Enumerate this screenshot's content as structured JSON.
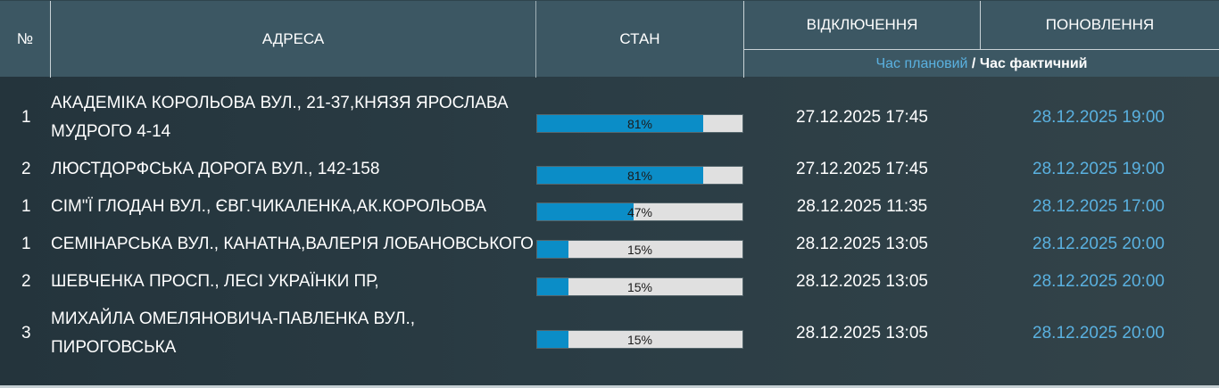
{
  "table": {
    "headers": {
      "num": "№",
      "address": "АДРЕСА",
      "status": "СТАН",
      "outage": "ВІДКЛЮЧЕННЯ",
      "restore": "ПОНОВЛЕННЯ",
      "time_planned": "Час плановий",
      "time_separator": " / ",
      "time_actual": "Час фактичний"
    },
    "colors": {
      "header_bg": "#3c5763",
      "progress_fill": "#0b8dc7",
      "progress_track": "#e0e0e0",
      "planned_time": "#5ab1e0",
      "actual_time": "#ffffff"
    },
    "rows": [
      {
        "num": "1",
        "address": "АКАДЕМІКА КОРОЛЬОВА ВУЛ., 21-37,КНЯЗЯ ЯРОСЛАВА МУДРОГО 4-14",
        "progress": 81,
        "progress_label": "81%",
        "outage_time": "27.12.2025 17:45",
        "restore_time": "28.12.2025 19:00"
      },
      {
        "num": "2",
        "address": "ЛЮСТДОРФСЬКА ДОРОГА ВУЛ., 142-158",
        "progress": 81,
        "progress_label": "81%",
        "outage_time": "27.12.2025 17:45",
        "restore_time": "28.12.2025 19:00"
      },
      {
        "num": "1",
        "address": "СІМ\"Ї ГЛОДАН ВУЛ., ЄВГ.ЧИКАЛЕНКА,АК.КОРОЛЬОВА",
        "progress": 47,
        "progress_label": "47%",
        "outage_time": "28.12.2025 11:35",
        "restore_time": "28.12.2025 17:00"
      },
      {
        "num": "1",
        "address": "СЕМІНАРСЬКА ВУЛ., КАНАТНА,ВАЛЕРІЯ ЛОБАНОВСЬКОГО",
        "progress": 15,
        "progress_label": "15%",
        "outage_time": "28.12.2025 13:05",
        "restore_time": "28.12.2025 20:00"
      },
      {
        "num": "2",
        "address": "ШЕВЧЕНКА ПРОСП., ЛЕСІ УКРАЇНКИ ПР,",
        "progress": 15,
        "progress_label": "15%",
        "outage_time": "28.12.2025 13:05",
        "restore_time": "28.12.2025 20:00"
      },
      {
        "num": "3",
        "address": "МИХАЙЛА ОМЕЛЯНОВИЧА-ПАВЛЕНКА ВУЛ., ПИРОГОВСЬКА",
        "progress": 15,
        "progress_label": "15%",
        "outage_time": "28.12.2025 13:05",
        "restore_time": "28.12.2025 20:00"
      }
    ]
  }
}
